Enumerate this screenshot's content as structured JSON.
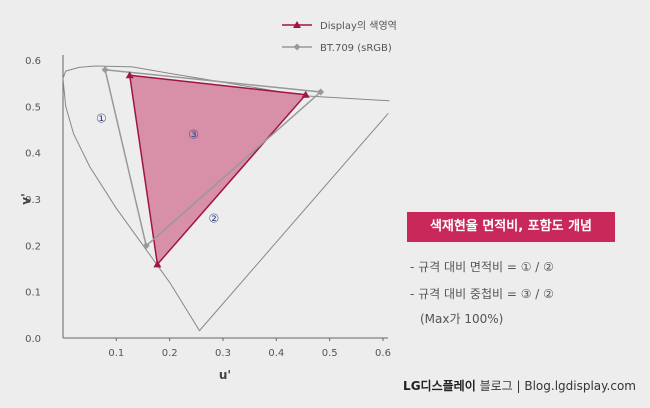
{
  "chart_data": {
    "type": "scatter",
    "xlabel": "u'",
    "ylabel": "v'",
    "xlim": [
      0,
      0.6
    ],
    "ylim": [
      0,
      0.6
    ],
    "x_ticks": [
      "0.1",
      "0.2",
      "0.3",
      "0.4",
      "0.5",
      "0.6"
    ],
    "y_ticks": [
      "0.0",
      "0.1",
      "0.2",
      "0.3",
      "0.4",
      "0.5",
      "0.6"
    ],
    "series": [
      {
        "name": "Display의 색영역",
        "color": "#a0144a",
        "fill": "#d88fa8",
        "marker": "triangle",
        "points": [
          [
            0.125,
            0.567
          ],
          [
            0.455,
            0.525
          ],
          [
            0.177,
            0.159
          ]
        ]
      },
      {
        "name": "BT.709 (sRGB)",
        "color": "#999999",
        "marker": "diamond",
        "points": [
          [
            0.079,
            0.579
          ],
          [
            0.483,
            0.531
          ],
          [
            0.156,
            0.199
          ]
        ]
      }
    ],
    "annotations": [
      {
        "text": "①",
        "x": 0.072,
        "y": 0.474
      },
      {
        "text": "②",
        "x": 0.283,
        "y": 0.258
      },
      {
        "text": "③",
        "x": 0.245,
        "y": 0.439
      }
    ]
  },
  "info": {
    "title": "색재현율 면적비, 포함도 개념",
    "line1": "- 규격 대비 면적비 = ① / ②",
    "line2": "- 규격 대비 중첩비 = ③ / ②",
    "line3": "(Max가 100%)"
  },
  "footer": {
    "brand": "LG디스플레이",
    "text": " 블로그 | Blog.lgdisplay.com"
  }
}
